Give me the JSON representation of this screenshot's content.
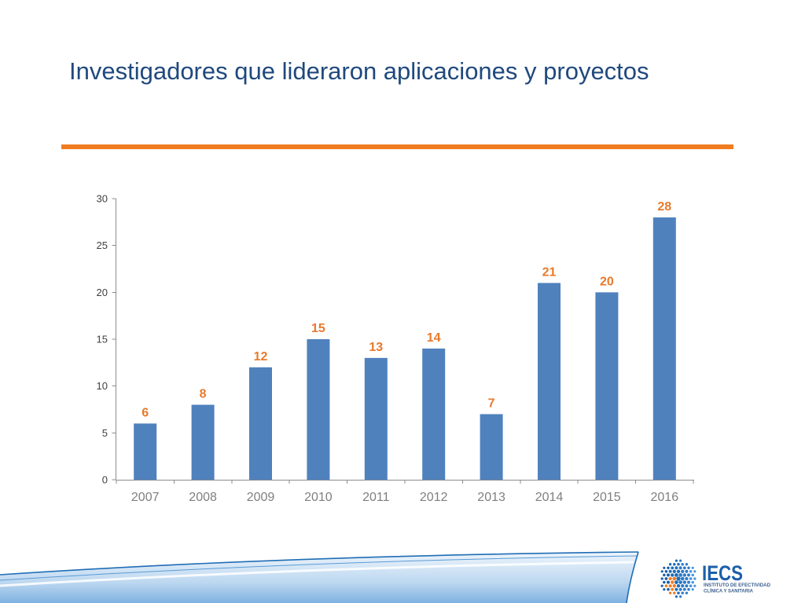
{
  "slide": {
    "title": "Investigadores que lideraron aplicaciones y proyectos",
    "title_color": "#1F497D",
    "accent_color": "#F07C21"
  },
  "chart_data": {
    "type": "bar",
    "categories": [
      "2007",
      "2008",
      "2009",
      "2010",
      "2011",
      "2012",
      "2013",
      "2014",
      "2015",
      "2016"
    ],
    "values": [
      6,
      8,
      12,
      15,
      13,
      14,
      7,
      21,
      20,
      28
    ],
    "ylim": [
      0,
      30
    ],
    "yticks": [
      0,
      5,
      10,
      15,
      20,
      25,
      30
    ],
    "data_labels": true,
    "grid": false,
    "show_legend": false,
    "bar_color": "#4F81BD",
    "data_label_color": "#E9792B",
    "axis_label_color": "#7F7F7F"
  },
  "logo": {
    "name": "IECS",
    "line1": "INSTITUTO DE EFECTIVIDAD",
    "line2": "CLÍNICA Y SANITARIA",
    "color": "#1B5FAA"
  }
}
